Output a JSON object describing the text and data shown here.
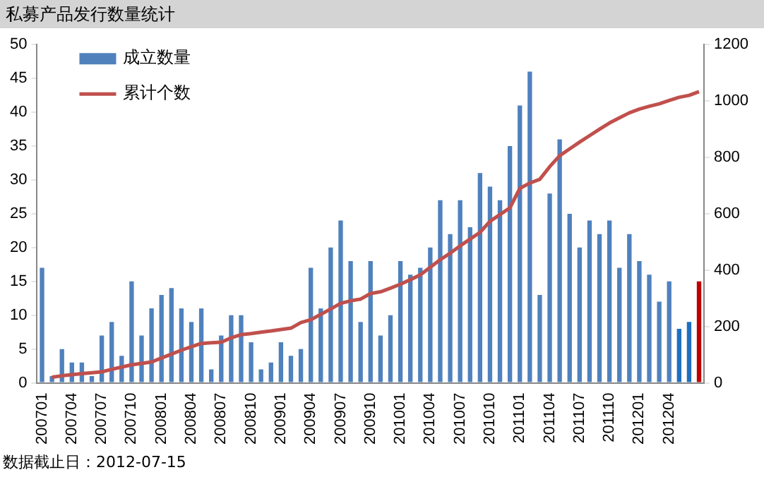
{
  "chart_data": {
    "type": "bar",
    "title": "私募产品发行数量统计",
    "categories": [
      "200701",
      null,
      null,
      "200704",
      null,
      null,
      "200707",
      null,
      null,
      "200710",
      null,
      null,
      "200801",
      null,
      null,
      "200804",
      null,
      null,
      "200807",
      null,
      null,
      "200810",
      null,
      null,
      "200901",
      null,
      null,
      "200904",
      null,
      null,
      "200907",
      null,
      null,
      "200910",
      null,
      null,
      "201001",
      null,
      null,
      "201004",
      null,
      null,
      "201007",
      null,
      null,
      "201010",
      null,
      null,
      "201101",
      null,
      null,
      "201104",
      null,
      null,
      "201107",
      null,
      null,
      "201110",
      null,
      null,
      "201201",
      null,
      null,
      "201204",
      null,
      null,
      null
    ],
    "series": [
      {
        "name": "成立数量",
        "color": "#4f81bd",
        "colors": [
          "#4f81bd",
          "#4f81bd",
          "#4f81bd",
          "#4f81bd",
          "#4f81bd",
          "#4f81bd",
          "#4f81bd",
          "#4f81bd",
          "#4f81bd",
          "#4f81bd",
          "#4f81bd",
          "#4f81bd",
          "#4f81bd",
          "#4f81bd",
          "#4f81bd",
          "#4f81bd",
          "#4f81bd",
          "#4f81bd",
          "#4f81bd",
          "#4f81bd",
          "#4f81bd",
          "#4f81bd",
          "#4f81bd",
          "#4f81bd",
          "#4f81bd",
          "#4f81bd",
          "#4f81bd",
          "#4f81bd",
          "#4f81bd",
          "#4f81bd",
          "#4f81bd",
          "#4f81bd",
          "#4f81bd",
          "#4f81bd",
          "#4f81bd",
          "#4f81bd",
          "#4f81bd",
          "#4f81bd",
          "#4f81bd",
          "#4f81bd",
          "#4f81bd",
          "#4f81bd",
          "#4f81bd",
          "#4f81bd",
          "#4f81bd",
          "#4f81bd",
          "#4f81bd",
          "#4f81bd",
          "#4f81bd",
          "#4f81bd",
          "#4f81bd",
          "#4f81bd",
          "#4f81bd",
          "#4f81bd",
          "#4f81bd",
          "#4f81bd",
          "#4f81bd",
          "#4f81bd",
          "#4f81bd",
          "#4f81bd",
          "#4f81bd",
          "#4f81bd",
          "#4f81bd",
          "#4f81bd",
          "#1f6fbf",
          "#1f6fbf",
          "#c00000"
        ],
        "values": [
          17,
          1,
          5,
          3,
          3,
          1,
          7,
          9,
          4,
          15,
          7,
          11,
          13,
          14,
          11,
          9,
          11,
          2,
          7,
          10,
          10,
          6,
          2,
          3,
          6,
          4,
          5,
          17,
          11,
          20,
          24,
          18,
          9,
          18,
          7,
          10,
          18,
          16,
          17,
          20,
          27,
          22,
          27,
          23,
          31,
          29,
          27,
          35,
          41,
          46,
          13,
          28,
          36,
          25,
          20,
          24,
          22,
          24,
          17,
          22,
          18,
          16,
          12,
          15,
          8,
          9,
          15
        ]
      },
      {
        "name": "累计个数",
        "type": "line",
        "axis": "y2",
        "color": "#c0504d",
        "values": [
          null,
          20,
          25,
          29,
          33,
          36,
          39,
          48,
          56,
          64,
          69,
          74,
          88,
          102,
          116,
          128,
          140,
          142,
          144,
          160,
          171,
          175,
          180,
          184,
          189,
          194,
          214,
          224,
          243,
          262,
          282,
          291,
          297,
          317,
          323,
          336,
          350,
          366,
          383,
          410,
          437,
          460,
          486,
          510,
          534,
          573,
          597,
          621,
          690,
          709,
          722,
          767,
          806,
          830,
          854,
          877,
          900,
          922,
          940,
          958,
          971,
          981,
          990,
          1002,
          1013,
          1020,
          1033
        ]
      }
    ],
    "ylim": [
      0,
      50
    ],
    "yticks": [
      0,
      5,
      10,
      15,
      20,
      25,
      30,
      35,
      40,
      45,
      50
    ],
    "y2lim": [
      0,
      1200
    ],
    "y2ticks": [
      0,
      200,
      400,
      600,
      800,
      1000,
      1200
    ],
    "legend": "top left",
    "grid": false,
    "marker": "none",
    "annotations": [
      "数据截止日：2012-07-15"
    ]
  }
}
